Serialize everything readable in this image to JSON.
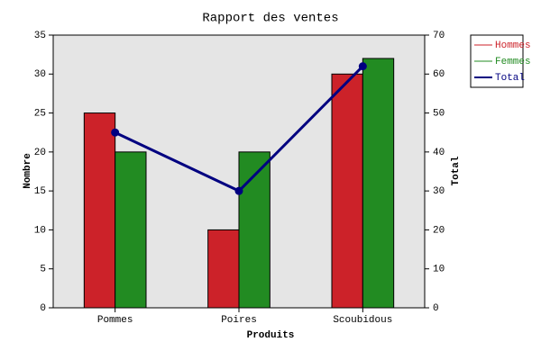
{
  "chart_data": {
    "type": "bar",
    "title": "Rapport des ventes",
    "x_label": "Produits",
    "y_label": "Nombre",
    "y2_label": "Total",
    "categories": [
      "Pommes",
      "Poires",
      "Scoubidous"
    ],
    "series": [
      {
        "name": "Hommes",
        "color": "#cc2229",
        "values": [
          25,
          10,
          30
        ]
      },
      {
        "name": "Femmes",
        "color": "#228b22",
        "values": [
          20,
          20,
          32
        ]
      },
      {
        "name": "Total",
        "color": "#000080",
        "values": [
          45,
          30,
          62
        ],
        "type": "line",
        "axis": "y2"
      }
    ],
    "ylim": [
      0,
      35
    ],
    "yticks": [
      0,
      5,
      10,
      15,
      20,
      25,
      30,
      35
    ],
    "y2lim": [
      0,
      70
    ],
    "y2ticks": [
      0,
      10,
      20,
      30,
      40,
      50,
      60,
      70
    ],
    "grid": false,
    "legend": "right"
  }
}
